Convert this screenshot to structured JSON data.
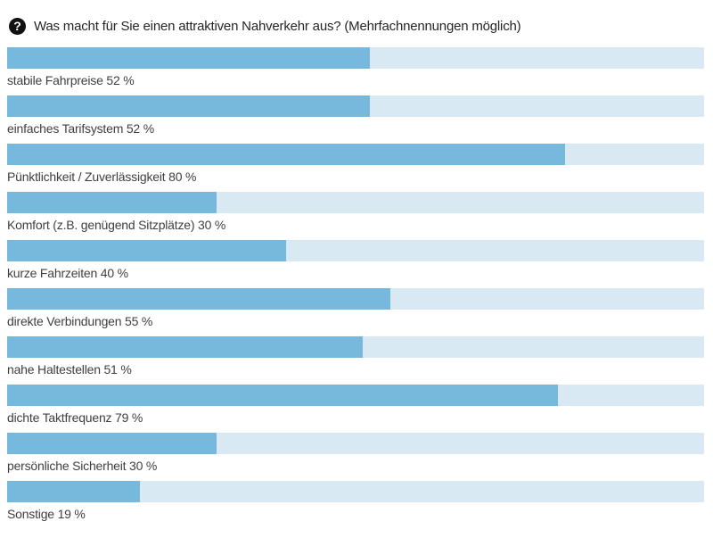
{
  "header": {
    "icon_glyph": "?"
  },
  "chart_data": {
    "type": "bar",
    "orientation": "horizontal",
    "title": "Was macht für Sie einen attraktiven Nahverkehr aus? (Mehrfachnennungen möglich)",
    "categories": [
      "stabile Fahrpreise",
      "einfaches Tarifsystem",
      "Pünktlichkeit / Zuverlässigkeit",
      "Komfort (z.B. genügend Sitzplätze)",
      "kurze Fahrzeiten",
      "direkte Verbindungen",
      "nahe Haltestellen",
      "dichte Taktfrequenz",
      "persönliche Sicherheit",
      "Sonstige"
    ],
    "values": [
      52,
      52,
      80,
      30,
      40,
      55,
      51,
      79,
      30,
      19
    ],
    "unit": "%",
    "xlim": [
      0,
      100
    ],
    "value_label_format": "{category} {value} %",
    "legend": "none",
    "grid": false,
    "bar_color": "#77b8dd",
    "track_color": "#d9e9f4",
    "label_color": "#3f3f3f",
    "title_color": "#262626",
    "icon_bg_color": "#111111"
  }
}
